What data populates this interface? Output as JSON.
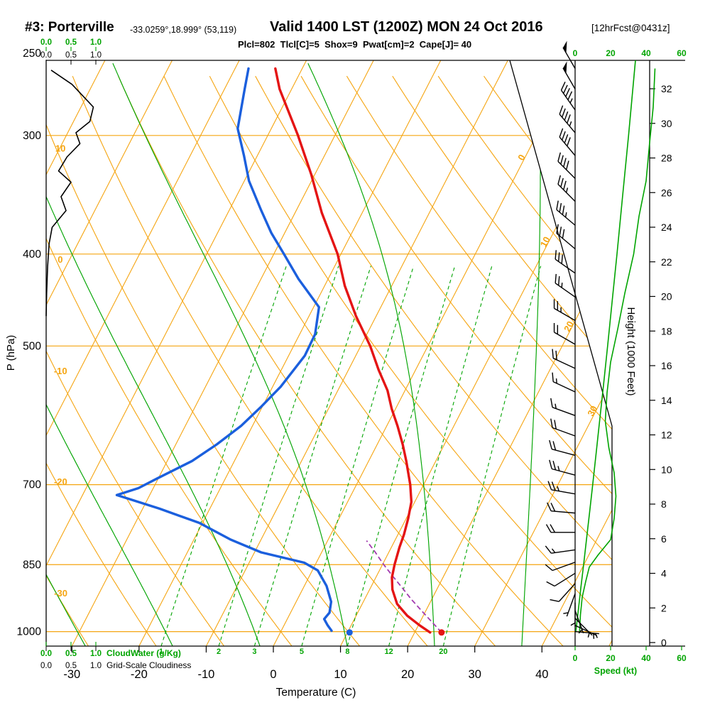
{
  "header": {
    "station": "#3: Porterville",
    "coords": "-33.0259°,18.999° (53,119)",
    "valid": "Valid 1400 LST (1200Z) MON 24 Oct 2016",
    "fcst": "[12hrFcst@0431z]",
    "params": "Plcl=802  Tlcl[C]=5  Shox=9  Pwat[cm]=2  Cape[J]= 40"
  },
  "chart_data": {
    "type": "skewt_logp_sounding",
    "axes": {
      "pressure": {
        "label": "P (hPa)",
        "ticks": [
          250,
          300,
          400,
          500,
          700,
          850,
          1000
        ]
      },
      "temperature": {
        "label": "Temperature (C)",
        "ticks": [
          -30,
          -20,
          -10,
          0,
          10,
          20,
          30,
          40
        ]
      },
      "height": {
        "label": "Height (1000 Feet)",
        "ticks": [
          0,
          2,
          4,
          6,
          8,
          10,
          12,
          14,
          16,
          18,
          20,
          22,
          24,
          26,
          28,
          30,
          32
        ]
      },
      "speed": {
        "label": "Speed (kt)",
        "ticks": [
          0,
          20,
          40,
          60
        ]
      },
      "cloudwater": {
        "label": "CloudWater (g/Kg)",
        "ticks": [
          "0.0",
          "0.5",
          "1.0"
        ]
      },
      "cloudiness": {
        "label": "Grid-Scale Cloudiness",
        "ticks": [
          "0.0",
          "0.5",
          "1.0"
        ]
      }
    },
    "grid": {
      "isotherm_step_c": 10,
      "isotherm_edge_labels": [
        0,
        10,
        20,
        30
      ],
      "dry_adiabat_edge_labels": [
        10,
        0,
        -10,
        -20,
        -30
      ],
      "mixing_ratio_gkg": [
        1,
        2,
        3,
        5,
        8,
        12,
        20
      ],
      "moist_adiabat_start_c": [
        -28,
        -15,
        -2,
        11,
        24,
        37
      ]
    },
    "colors": {
      "grid_orange": "#f5a511",
      "green": "#00a400",
      "temperature": "#e41414",
      "dewpoint": "#1b5fdd",
      "parcel": "#a23bb0",
      "params_text": "#c4006e"
    },
    "temperature_profile": [
      [
        255,
        -44
      ],
      [
        268,
        -41.8
      ],
      [
        300,
        -35.5
      ],
      [
        330,
        -30.5
      ],
      [
        362,
        -26
      ],
      [
        400,
        -20.5
      ],
      [
        432,
        -17
      ],
      [
        465,
        -13
      ],
      [
        500,
        -8.6
      ],
      [
        530,
        -5.5
      ],
      [
        557,
        -2.6
      ],
      [
        582,
        -0.6
      ],
      [
        607,
        1.6
      ],
      [
        635,
        3.8
      ],
      [
        661,
        5.6
      ],
      [
        700,
        8
      ],
      [
        730,
        9.5
      ],
      [
        760,
        10.3
      ],
      [
        790,
        10.9
      ],
      [
        815,
        11.2
      ],
      [
        850,
        11.8
      ],
      [
        877,
        12.4
      ],
      [
        903,
        13.4
      ],
      [
        935,
        15.2
      ],
      [
        962,
        17.6
      ],
      [
        985,
        20.2
      ],
      [
        1002,
        22.3
      ]
    ],
    "dewpoint_profile": [
      [
        255,
        -48
      ],
      [
        268,
        -47
      ],
      [
        295,
        -45
      ],
      [
        315,
        -42
      ],
      [
        335,
        -39.3
      ],
      [
        360,
        -35.2
      ],
      [
        380,
        -32
      ],
      [
        400,
        -28.5
      ],
      [
        425,
        -24.4
      ],
      [
        455,
        -19.2
      ],
      [
        486,
        -17.7
      ],
      [
        512,
        -17.6
      ],
      [
        552,
        -18.8
      ],
      [
        580,
        -20.2
      ],
      [
        607,
        -21.7
      ],
      [
        635,
        -23.9
      ],
      [
        661,
        -26.3
      ],
      [
        690,
        -30.2
      ],
      [
        706,
        -32.2
      ],
      [
        718,
        -34.9
      ],
      [
        742,
        -27.5
      ],
      [
        768,
        -20.5
      ],
      [
        800,
        -14.5
      ],
      [
        825,
        -9
      ],
      [
        846,
        -1.8
      ],
      [
        862,
        0.8
      ],
      [
        895,
        3.3
      ],
      [
        930,
        5.2
      ],
      [
        955,
        5.8
      ],
      [
        970,
        5.5
      ],
      [
        985,
        6.5
      ],
      [
        998,
        7.5
      ]
    ],
    "parcel_profile": [
      [
        1002,
        24
      ],
      [
        975,
        21.6
      ],
      [
        950,
        19.3
      ],
      [
        925,
        17
      ],
      [
        900,
        14.8
      ],
      [
        875,
        12.5
      ],
      [
        850,
        10.2
      ],
      [
        825,
        8
      ],
      [
        802,
        5.8
      ]
    ],
    "surface_dots": {
      "pressure": 1002,
      "temp_c": 24,
      "dewpoint_c": 10.3
    },
    "cloudiness_profile": [
      [
        256,
        0.1
      ],
      [
        265,
        0.52
      ],
      [
        280,
        0.95
      ],
      [
        290,
        0.88
      ],
      [
        298,
        0.6
      ],
      [
        306,
        0.68
      ],
      [
        316,
        0.42
      ],
      [
        327,
        0.25
      ],
      [
        336,
        0.5
      ],
      [
        348,
        0.3
      ],
      [
        360,
        0.4
      ],
      [
        375,
        0.12
      ],
      [
        390,
        0.06
      ],
      [
        412,
        0.03
      ],
      [
        440,
        0.01
      ],
      [
        465,
        0
      ]
    ],
    "cloudwater_profile": [
      [
        1030,
        0
      ],
      [
        700,
        0
      ],
      [
        450,
        0
      ],
      [
        250,
        0
      ]
    ],
    "wind_barbs": [
      [
        255,
        50,
        330
      ],
      [
        268,
        50,
        330
      ],
      [
        282,
        45,
        325
      ],
      [
        298,
        45,
        320
      ],
      [
        315,
        40,
        320
      ],
      [
        333,
        40,
        315
      ],
      [
        352,
        35,
        315
      ],
      [
        373,
        35,
        310
      ],
      [
        395,
        30,
        310
      ],
      [
        419,
        30,
        305
      ],
      [
        444,
        25,
        305
      ],
      [
        470,
        25,
        300
      ],
      [
        498,
        20,
        300
      ],
      [
        528,
        20,
        295
      ],
      [
        559,
        15,
        295
      ],
      [
        592,
        15,
        290
      ],
      [
        622,
        20,
        290
      ],
      [
        652,
        20,
        285
      ],
      [
        684,
        25,
        285
      ],
      [
        716,
        25,
        280
      ],
      [
        750,
        20,
        275
      ],
      [
        786,
        20,
        270
      ],
      [
        820,
        15,
        262
      ],
      [
        845,
        10,
        250
      ],
      [
        868,
        10,
        238
      ],
      [
        890,
        8,
        222
      ],
      [
        912,
        5,
        200
      ],
      [
        932,
        5,
        180
      ],
      [
        950,
        5,
        160
      ],
      [
        968,
        5,
        135
      ],
      [
        985,
        5,
        115
      ],
      [
        1000,
        4,
        95
      ]
    ],
    "speed_profile_kt": [
      [
        255,
        45
      ],
      [
        280,
        44
      ],
      [
        305,
        42
      ],
      [
        335,
        40
      ],
      [
        365,
        36
      ],
      [
        400,
        33
      ],
      [
        440,
        28
      ],
      [
        480,
        24
      ],
      [
        520,
        20
      ],
      [
        560,
        18
      ],
      [
        600,
        17
      ],
      [
        640,
        19
      ],
      [
        680,
        22
      ],
      [
        720,
        23
      ],
      [
        760,
        22
      ],
      [
        800,
        20
      ],
      [
        830,
        13
      ],
      [
        855,
        8
      ],
      [
        885,
        6
      ],
      [
        920,
        4
      ],
      [
        960,
        3
      ],
      [
        1000,
        2.5
      ]
    ],
    "height_profile_kft": [
      [
        250,
        34.0
      ],
      [
        300,
        30.1
      ],
      [
        350,
        26.6
      ],
      [
        400,
        23.6
      ],
      [
        450,
        20.8
      ],
      [
        500,
        18.3
      ],
      [
        550,
        16.0
      ],
      [
        600,
        13.8
      ],
      [
        650,
        11.8
      ],
      [
        700,
        9.9
      ],
      [
        750,
        8.1
      ],
      [
        800,
        6.4
      ],
      [
        850,
        4.8
      ],
      [
        900,
        3.2
      ],
      [
        950,
        1.8
      ],
      [
        1000,
        0.4
      ]
    ]
  }
}
